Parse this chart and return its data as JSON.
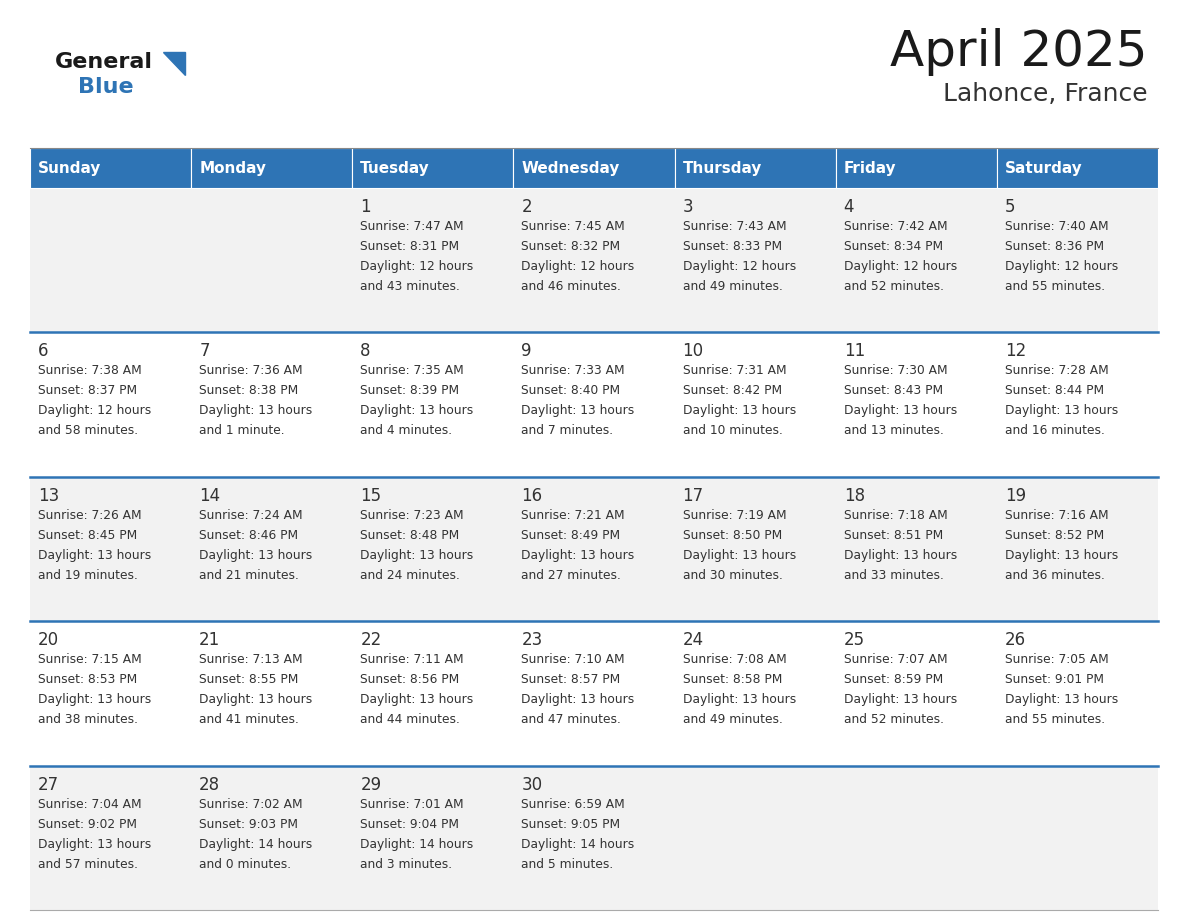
{
  "title": "April 2025",
  "subtitle": "Lahonce, France",
  "header_bg": "#2E74B5",
  "header_text_color": "#FFFFFF",
  "cell_bg_light": "#F2F2F2",
  "cell_bg_white": "#FFFFFF",
  "row_line_color": "#2E74B5",
  "text_color": "#333333",
  "days_of_week": [
    "Sunday",
    "Monday",
    "Tuesday",
    "Wednesday",
    "Thursday",
    "Friday",
    "Saturday"
  ],
  "calendar": [
    [
      {
        "day": "",
        "sunrise": "",
        "sunset": "",
        "daylight": ""
      },
      {
        "day": "",
        "sunrise": "",
        "sunset": "",
        "daylight": ""
      },
      {
        "day": "1",
        "sunrise": "Sunrise: 7:47 AM",
        "sunset": "Sunset: 8:31 PM",
        "daylight": "Daylight: 12 hours\nand 43 minutes."
      },
      {
        "day": "2",
        "sunrise": "Sunrise: 7:45 AM",
        "sunset": "Sunset: 8:32 PM",
        "daylight": "Daylight: 12 hours\nand 46 minutes."
      },
      {
        "day": "3",
        "sunrise": "Sunrise: 7:43 AM",
        "sunset": "Sunset: 8:33 PM",
        "daylight": "Daylight: 12 hours\nand 49 minutes."
      },
      {
        "day": "4",
        "sunrise": "Sunrise: 7:42 AM",
        "sunset": "Sunset: 8:34 PM",
        "daylight": "Daylight: 12 hours\nand 52 minutes."
      },
      {
        "day": "5",
        "sunrise": "Sunrise: 7:40 AM",
        "sunset": "Sunset: 8:36 PM",
        "daylight": "Daylight: 12 hours\nand 55 minutes."
      }
    ],
    [
      {
        "day": "6",
        "sunrise": "Sunrise: 7:38 AM",
        "sunset": "Sunset: 8:37 PM",
        "daylight": "Daylight: 12 hours\nand 58 minutes."
      },
      {
        "day": "7",
        "sunrise": "Sunrise: 7:36 AM",
        "sunset": "Sunset: 8:38 PM",
        "daylight": "Daylight: 13 hours\nand 1 minute."
      },
      {
        "day": "8",
        "sunrise": "Sunrise: 7:35 AM",
        "sunset": "Sunset: 8:39 PM",
        "daylight": "Daylight: 13 hours\nand 4 minutes."
      },
      {
        "day": "9",
        "sunrise": "Sunrise: 7:33 AM",
        "sunset": "Sunset: 8:40 PM",
        "daylight": "Daylight: 13 hours\nand 7 minutes."
      },
      {
        "day": "10",
        "sunrise": "Sunrise: 7:31 AM",
        "sunset": "Sunset: 8:42 PM",
        "daylight": "Daylight: 13 hours\nand 10 minutes."
      },
      {
        "day": "11",
        "sunrise": "Sunrise: 7:30 AM",
        "sunset": "Sunset: 8:43 PM",
        "daylight": "Daylight: 13 hours\nand 13 minutes."
      },
      {
        "day": "12",
        "sunrise": "Sunrise: 7:28 AM",
        "sunset": "Sunset: 8:44 PM",
        "daylight": "Daylight: 13 hours\nand 16 minutes."
      }
    ],
    [
      {
        "day": "13",
        "sunrise": "Sunrise: 7:26 AM",
        "sunset": "Sunset: 8:45 PM",
        "daylight": "Daylight: 13 hours\nand 19 minutes."
      },
      {
        "day": "14",
        "sunrise": "Sunrise: 7:24 AM",
        "sunset": "Sunset: 8:46 PM",
        "daylight": "Daylight: 13 hours\nand 21 minutes."
      },
      {
        "day": "15",
        "sunrise": "Sunrise: 7:23 AM",
        "sunset": "Sunset: 8:48 PM",
        "daylight": "Daylight: 13 hours\nand 24 minutes."
      },
      {
        "day": "16",
        "sunrise": "Sunrise: 7:21 AM",
        "sunset": "Sunset: 8:49 PM",
        "daylight": "Daylight: 13 hours\nand 27 minutes."
      },
      {
        "day": "17",
        "sunrise": "Sunrise: 7:19 AM",
        "sunset": "Sunset: 8:50 PM",
        "daylight": "Daylight: 13 hours\nand 30 minutes."
      },
      {
        "day": "18",
        "sunrise": "Sunrise: 7:18 AM",
        "sunset": "Sunset: 8:51 PM",
        "daylight": "Daylight: 13 hours\nand 33 minutes."
      },
      {
        "day": "19",
        "sunrise": "Sunrise: 7:16 AM",
        "sunset": "Sunset: 8:52 PM",
        "daylight": "Daylight: 13 hours\nand 36 minutes."
      }
    ],
    [
      {
        "day": "20",
        "sunrise": "Sunrise: 7:15 AM",
        "sunset": "Sunset: 8:53 PM",
        "daylight": "Daylight: 13 hours\nand 38 minutes."
      },
      {
        "day": "21",
        "sunrise": "Sunrise: 7:13 AM",
        "sunset": "Sunset: 8:55 PM",
        "daylight": "Daylight: 13 hours\nand 41 minutes."
      },
      {
        "day": "22",
        "sunrise": "Sunrise: 7:11 AM",
        "sunset": "Sunset: 8:56 PM",
        "daylight": "Daylight: 13 hours\nand 44 minutes."
      },
      {
        "day": "23",
        "sunrise": "Sunrise: 7:10 AM",
        "sunset": "Sunset: 8:57 PM",
        "daylight": "Daylight: 13 hours\nand 47 minutes."
      },
      {
        "day": "24",
        "sunrise": "Sunrise: 7:08 AM",
        "sunset": "Sunset: 8:58 PM",
        "daylight": "Daylight: 13 hours\nand 49 minutes."
      },
      {
        "day": "25",
        "sunrise": "Sunrise: 7:07 AM",
        "sunset": "Sunset: 8:59 PM",
        "daylight": "Daylight: 13 hours\nand 52 minutes."
      },
      {
        "day": "26",
        "sunrise": "Sunrise: 7:05 AM",
        "sunset": "Sunset: 9:01 PM",
        "daylight": "Daylight: 13 hours\nand 55 minutes."
      }
    ],
    [
      {
        "day": "27",
        "sunrise": "Sunrise: 7:04 AM",
        "sunset": "Sunset: 9:02 PM",
        "daylight": "Daylight: 13 hours\nand 57 minutes."
      },
      {
        "day": "28",
        "sunrise": "Sunrise: 7:02 AM",
        "sunset": "Sunset: 9:03 PM",
        "daylight": "Daylight: 14 hours\nand 0 minutes."
      },
      {
        "day": "29",
        "sunrise": "Sunrise: 7:01 AM",
        "sunset": "Sunset: 9:04 PM",
        "daylight": "Daylight: 14 hours\nand 3 minutes."
      },
      {
        "day": "30",
        "sunrise": "Sunrise: 6:59 AM",
        "sunset": "Sunset: 9:05 PM",
        "daylight": "Daylight: 14 hours\nand 5 minutes."
      },
      {
        "day": "",
        "sunrise": "",
        "sunset": "",
        "daylight": ""
      },
      {
        "day": "",
        "sunrise": "",
        "sunset": "",
        "daylight": ""
      },
      {
        "day": "",
        "sunrise": "",
        "sunset": "",
        "daylight": ""
      }
    ]
  ],
  "logo_general_color": "#1a1a1a",
  "logo_blue_color": "#2E74B5",
  "title_color": "#1a1a1a",
  "subtitle_color": "#333333"
}
